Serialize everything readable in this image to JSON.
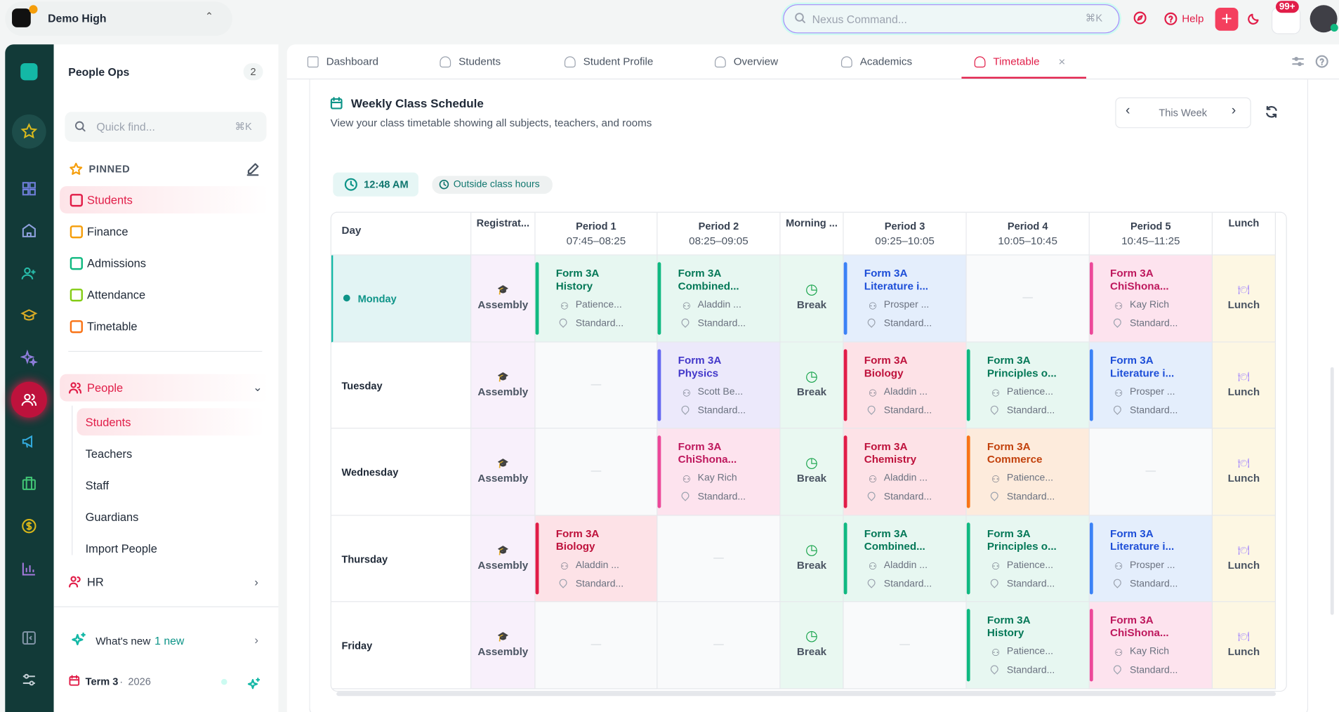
{
  "org": {
    "name": "Demo High"
  },
  "search": {
    "placeholder": "Nexus Command...",
    "shortcut": "⌘K"
  },
  "topbar": {
    "help": "Help",
    "notifications": "99+"
  },
  "sidebar": {
    "title": "People Ops",
    "count": 2,
    "quickfind": "Quick find...",
    "quickfind_shortcut": "⌘K",
    "pinned_label": "PINNED",
    "pinned": [
      "Students",
      "Finance",
      "Admissions",
      "Attendance",
      "Timetable"
    ],
    "group": "People",
    "group_items": [
      "Students",
      "Teachers",
      "Staff",
      "Guardians",
      "Import People"
    ],
    "hr": "HR",
    "whats_new": "What's new",
    "whats_new_badge": "1 new",
    "term": "Term 3",
    "year": "2026"
  },
  "tabs": [
    "Dashboard",
    "Students",
    "Student Profile",
    "Overview",
    "Academics",
    "Timetable"
  ],
  "schedule": {
    "title": "Weekly Class Schedule",
    "subtitle": "View your class timetable showing all subjects, teachers, and rooms",
    "week": "This Week",
    "time": "12:48 AM",
    "status": "Outside class hours",
    "day_header": "Day",
    "columns": [
      {
        "name": "Registrat..."
      },
      {
        "name": "Period 1",
        "time": "07:45–08:25"
      },
      {
        "name": "Period 2",
        "time": "08:25–09:05"
      },
      {
        "name": "Morning ..."
      },
      {
        "name": "Period 3",
        "time": "09:25–10:05"
      },
      {
        "name": "Period 4",
        "time": "10:05–10:45"
      },
      {
        "name": "Period 5",
        "time": "10:45–11:25"
      },
      {
        "name": "Lunch"
      }
    ],
    "rows": [
      {
        "day": "Monday",
        "current": true,
        "cells": [
          {
            "kind": "assembly",
            "label": "Assembly"
          },
          {
            "kind": "class",
            "class": "Form 3A",
            "subject": "History",
            "teacher": "Patience...",
            "room": "Standard...",
            "color": "green"
          },
          {
            "kind": "class",
            "class": "Form 3A",
            "subject": "Combined...",
            "teacher": "Aladdin ...",
            "room": "Standard...",
            "color": "green"
          },
          {
            "kind": "break",
            "label": "Break"
          },
          {
            "kind": "class",
            "class": "Form 3A",
            "subject": "Literature i...",
            "teacher": "Prosper ...",
            "room": "Standard...",
            "color": "blue"
          },
          {
            "kind": "empty",
            "label": "—"
          },
          {
            "kind": "class",
            "class": "Form 3A",
            "subject": "ChiShona...",
            "teacher": "Kay Rich",
            "room": "Standard...",
            "color": "pink"
          },
          {
            "kind": "lunch",
            "label": "Lunch"
          }
        ]
      },
      {
        "day": "Tuesday",
        "cells": [
          {
            "kind": "assembly",
            "label": "Assembly"
          },
          {
            "kind": "empty",
            "label": "—"
          },
          {
            "kind": "class",
            "class": "Form 3A",
            "subject": "Physics",
            "teacher": "Scott Be...",
            "room": "Standard...",
            "color": "purple"
          },
          {
            "kind": "break",
            "label": "Break"
          },
          {
            "kind": "class",
            "class": "Form 3A",
            "subject": "Biology",
            "teacher": "Aladdin ...",
            "room": "Standard...",
            "color": "rose"
          },
          {
            "kind": "class",
            "class": "Form 3A",
            "subject": "Principles o...",
            "teacher": "Patience...",
            "room": "Standard...",
            "color": "green"
          },
          {
            "kind": "class",
            "class": "Form 3A",
            "subject": "Literature i...",
            "teacher": "Prosper ...",
            "room": "Standard...",
            "color": "blue"
          },
          {
            "kind": "lunch",
            "label": "Lunch"
          }
        ]
      },
      {
        "day": "Wednesday",
        "cells": [
          {
            "kind": "assembly",
            "label": "Assembly"
          },
          {
            "kind": "empty",
            "label": "—"
          },
          {
            "kind": "class",
            "class": "Form 3A",
            "subject": "ChiShona...",
            "teacher": "Kay Rich",
            "room": "Standard...",
            "color": "pink"
          },
          {
            "kind": "break",
            "label": "Break"
          },
          {
            "kind": "class",
            "class": "Form 3A",
            "subject": "Chemistry",
            "teacher": "Aladdin ...",
            "room": "Standard...",
            "color": "rose"
          },
          {
            "kind": "class",
            "class": "Form 3A",
            "subject": "Commerce",
            "teacher": "Patience...",
            "room": "Standard...",
            "color": "orange"
          },
          {
            "kind": "empty",
            "label": "—"
          },
          {
            "kind": "lunch",
            "label": "Lunch"
          }
        ]
      },
      {
        "day": "Thursday",
        "cells": [
          {
            "kind": "assembly",
            "label": "Assembly"
          },
          {
            "kind": "class",
            "class": "Form 3A",
            "subject": "Biology",
            "teacher": "Aladdin ...",
            "room": "Standard...",
            "color": "rose"
          },
          {
            "kind": "empty",
            "label": "—"
          },
          {
            "kind": "break",
            "label": "Break"
          },
          {
            "kind": "class",
            "class": "Form 3A",
            "subject": "Combined...",
            "teacher": "Aladdin ...",
            "room": "Standard...",
            "color": "green"
          },
          {
            "kind": "class",
            "class": "Form 3A",
            "subject": "Principles o...",
            "teacher": "Patience...",
            "room": "Standard...",
            "color": "green"
          },
          {
            "kind": "class",
            "class": "Form 3A",
            "subject": "Literature i...",
            "teacher": "Prosper ...",
            "room": "Standard...",
            "color": "blue"
          },
          {
            "kind": "lunch",
            "label": "Lunch"
          }
        ]
      },
      {
        "day": "Friday",
        "cells": [
          {
            "kind": "assembly",
            "label": "Assembly"
          },
          {
            "kind": "empty",
            "label": "—"
          },
          {
            "kind": "empty",
            "label": "—"
          },
          {
            "kind": "break",
            "label": "Break"
          },
          {
            "kind": "empty",
            "label": "—"
          },
          {
            "kind": "class",
            "class": "Form 3A",
            "subject": "History",
            "teacher": "Patience...",
            "room": "Standard...",
            "color": "green"
          },
          {
            "kind": "class",
            "class": "Form 3A",
            "subject": "ChiShona...",
            "teacher": "Kay Rich",
            "room": "Standard...",
            "color": "pink"
          },
          {
            "kind": "lunch",
            "label": "Lunch"
          }
        ]
      }
    ]
  }
}
